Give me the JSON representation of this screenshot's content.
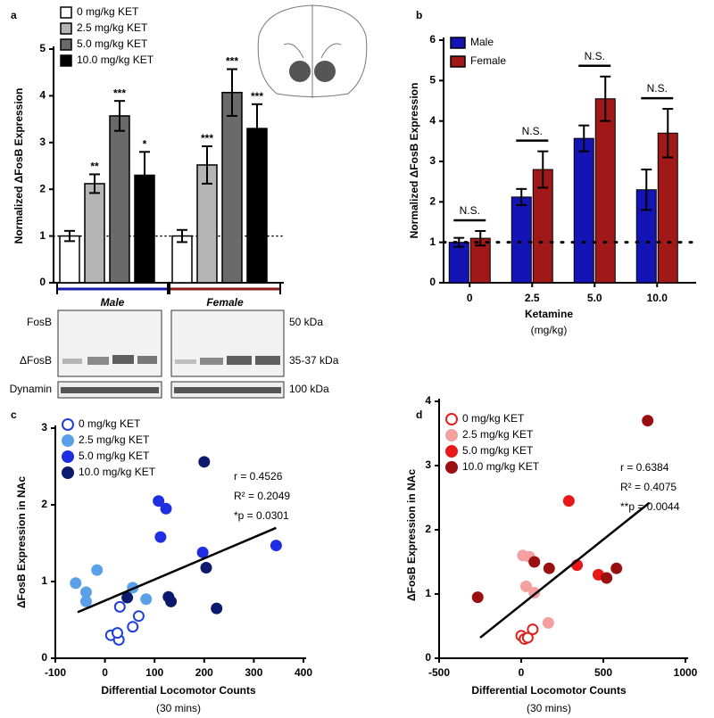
{
  "chart_data": [
    {
      "panel": "a",
      "type": "grouped_bar",
      "y_label": "Normalized ΔFosB Expression",
      "groups": [
        "Male",
        "Female"
      ],
      "group_colors": [
        "#1a1aa8",
        "#8b1a1a"
      ],
      "series": [
        {
          "name": "0 mg/kg KET",
          "color": "#ffffff",
          "values": [
            1.0,
            1.0
          ],
          "errors": [
            0.11,
            0.13
          ],
          "significance": [
            null,
            null
          ]
        },
        {
          "name": "2.5 mg/kg KET",
          "color": "#b4b4b4",
          "values": [
            2.12,
            2.52
          ],
          "errors": [
            0.2,
            0.4
          ],
          "significance": [
            "**",
            "***"
          ]
        },
        {
          "name": "5.0 mg/kg KET",
          "color": "#6a6a6a",
          "values": [
            3.57,
            4.07
          ],
          "errors": [
            0.32,
            0.5
          ],
          "significance": [
            "***",
            "***"
          ]
        },
        {
          "name": "10.0 mg/kg KET",
          "color": "#000000",
          "values": [
            2.3,
            3.3
          ],
          "errors": [
            0.5,
            0.52
          ],
          "significance": [
            "*",
            "***"
          ]
        }
      ],
      "ylim": [
        0,
        5
      ],
      "yticks": [
        0,
        1,
        2,
        3,
        4,
        5
      ],
      "reference_line": 1
    },
    {
      "panel": "b",
      "type": "bar",
      "y_label": "Normalized ΔFosB Expression",
      "x_label": "Ketamine",
      "x_sublabel": "(mg/kg)",
      "categories": [
        "0",
        "2.5",
        "5.0",
        "10.0"
      ],
      "series": [
        {
          "name": "Male",
          "color": "#1414b4",
          "values": [
            1.0,
            2.12,
            3.57,
            2.3
          ],
          "errors": [
            0.11,
            0.2,
            0.32,
            0.5
          ]
        },
        {
          "name": "Female",
          "color": "#a01818",
          "values": [
            1.1,
            2.8,
            4.55,
            3.7
          ],
          "errors": [
            0.18,
            0.45,
            0.55,
            0.6
          ]
        }
      ],
      "annotations": [
        "N.S.",
        "N.S.",
        "N.S.",
        "N.S."
      ],
      "ylim": [
        0,
        6
      ],
      "yticks": [
        0,
        1,
        2,
        3,
        4,
        5,
        6
      ],
      "reference_line": 1
    },
    {
      "panel": "c",
      "type": "scatter",
      "y_label": "ΔFosB Expression in NAc",
      "x_label": "Differential Locomotor Counts",
      "x_sublabel": "(30 mins)",
      "series": [
        {
          "name": "0 mg/kg KET",
          "color": "#1f3fdc",
          "filled": false,
          "x": [
            12,
            28,
            25,
            30,
            56,
            68
          ],
          "y": [
            0.3,
            0.24,
            0.33,
            0.67,
            0.41,
            0.55
          ]
        },
        {
          "name": "2.5 mg/kg KET",
          "color": "#5aa0e8",
          "filled": true,
          "x": [
            -59,
            -38,
            -38,
            -16,
            56,
            83
          ],
          "y": [
            0.98,
            0.86,
            0.74,
            1.15,
            0.92,
            0.77
          ]
        },
        {
          "name": "5.0 mg/kg KET",
          "color": "#1e2ee0",
          "filled": true,
          "x": [
            108,
            123,
            112,
            197,
            345
          ],
          "y": [
            2.05,
            1.95,
            1.58,
            1.38,
            1.47
          ]
        },
        {
          "name": "10.0 mg/kg KET",
          "color": "#0c1a6e",
          "filled": true,
          "x": [
            200,
            204,
            45,
            128,
            133,
            225
          ],
          "y": [
            2.56,
            1.18,
            0.79,
            0.8,
            0.74,
            0.65
          ]
        }
      ],
      "fit": {
        "x": [
          -55,
          345
        ],
        "y": [
          0.6,
          1.7
        ]
      },
      "annotations": [
        "r = 0.4526",
        "R² = 0.2049",
        "*p = 0.0301"
      ],
      "xlim": [
        -100,
        400
      ],
      "xticks": [
        -100,
        0,
        100,
        200,
        300,
        400
      ],
      "ylim": [
        0,
        3
      ],
      "yticks": [
        0,
        1,
        2,
        3
      ]
    },
    {
      "panel": "d",
      "type": "scatter",
      "y_label": "ΔFosB Expression in NAc",
      "x_label": "Differential Locomotor Counts",
      "x_sublabel": "(30 mins)",
      "series": [
        {
          "name": "0 mg/kg KET",
          "color": "#e0201a",
          "filled": false,
          "x": [
            0,
            20,
            40,
            70
          ],
          "y": [
            0.35,
            0.3,
            0.32,
            0.45
          ]
        },
        {
          "name": "2.5 mg/kg KET",
          "color": "#f4a0a0",
          "filled": true,
          "x": [
            10,
            50,
            30,
            80,
            165
          ],
          "y": [
            1.6,
            1.58,
            1.12,
            1.02,
            0.55
          ]
        },
        {
          "name": "5.0 mg/kg KET",
          "color": "#e81818",
          "filled": true,
          "x": [
            290,
            340,
            470
          ],
          "y": [
            2.45,
            1.45,
            1.3
          ]
        },
        {
          "name": "10.0 mg/kg KET",
          "color": "#9a1010",
          "filled": true,
          "x": [
            -265,
            80,
            170,
            520,
            580,
            770
          ],
          "y": [
            0.95,
            1.5,
            1.4,
            1.25,
            1.4,
            3.7
          ]
        }
      ],
      "fit": {
        "x": [
          -250,
          780
        ],
        "y": [
          0.32,
          2.42
        ]
      },
      "annotations": [
        "r = 0.6384",
        "R² = 0.4075",
        "**p = 0.0044"
      ],
      "xlim": [
        -500,
        1000
      ],
      "xticks": [
        -500,
        0,
        500,
        1000
      ],
      "ylim": [
        0,
        4
      ],
      "yticks": [
        0,
        1,
        2,
        3,
        4
      ]
    }
  ],
  "blot": {
    "bands": [
      "FosB",
      "ΔFosB",
      "Dynamin"
    ],
    "sizes": [
      "50 kDa",
      "35-37 kDa",
      "100 kDa"
    ]
  }
}
